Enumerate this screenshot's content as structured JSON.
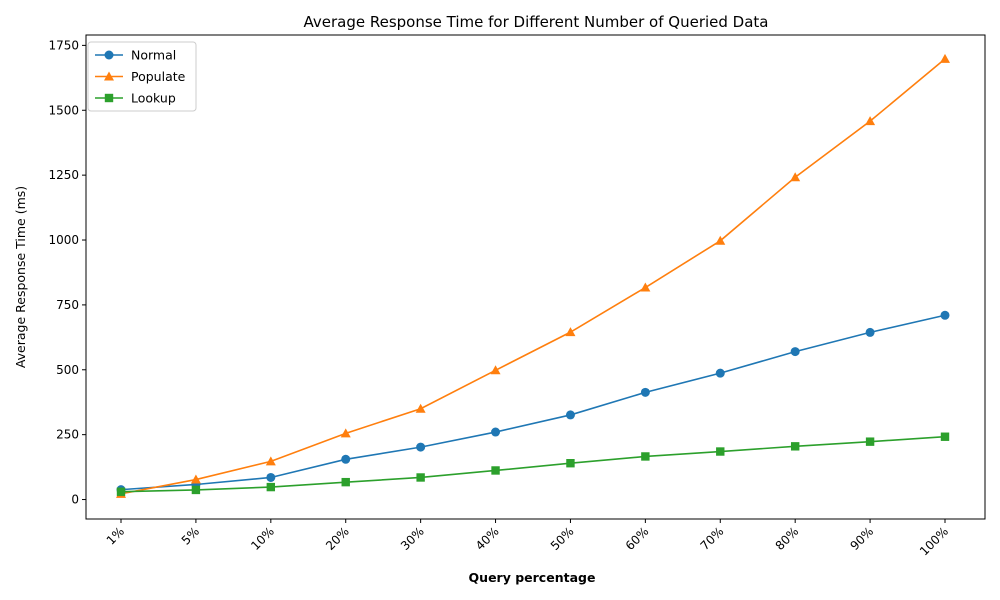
{
  "chart_data": {
    "type": "line",
    "title": "Average Response Time for Different Number of Queried Data",
    "xlabel": "Query percentage",
    "ylabel": "Average Response Time (ms)",
    "categories": [
      "1%",
      "5%",
      "10%",
      "20%",
      "30%",
      "40%",
      "50%",
      "60%",
      "70%",
      "80%",
      "90%",
      "100%"
    ],
    "ylim": [
      -75,
      1790
    ],
    "yticks": [
      0,
      250,
      500,
      750,
      1000,
      1250,
      1500,
      1750
    ],
    "grid": false,
    "legend_position": "top-left",
    "series": [
      {
        "name": "Normal",
        "color": "#1f77b4",
        "marker": "circle",
        "values": [
          38,
          58,
          85,
          155,
          202,
          260,
          326,
          413,
          487,
          570,
          644,
          710
        ]
      },
      {
        "name": "Populate",
        "color": "#ff7f0e",
        "marker": "triangle",
        "values": [
          22,
          77,
          147,
          255,
          350,
          498,
          645,
          817,
          997,
          1242,
          1458,
          1698
        ]
      },
      {
        "name": "Lookup",
        "color": "#2ca02c",
        "marker": "square",
        "values": [
          30,
          37,
          48,
          67,
          85,
          112,
          140,
          166,
          185,
          205,
          223,
          242
        ]
      }
    ]
  }
}
